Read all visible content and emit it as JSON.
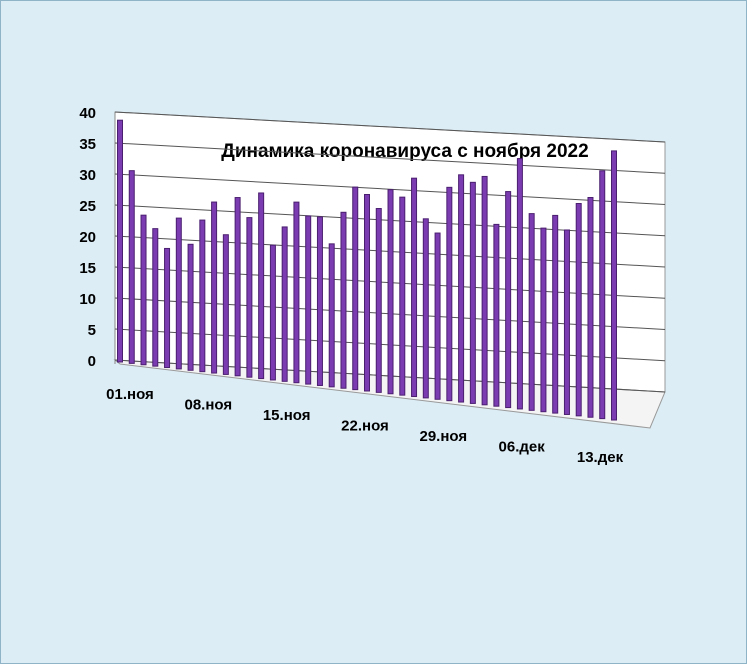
{
  "chart_data": {
    "type": "bar",
    "title": "Динамика  коронавируса с ноября 2022",
    "categories": [
      "01.ноя",
      null,
      null,
      null,
      null,
      null,
      null,
      "08.ноя",
      null,
      null,
      null,
      null,
      null,
      null,
      "15.ноя",
      null,
      null,
      null,
      null,
      null,
      null,
      "22.ноя",
      null,
      null,
      null,
      null,
      null,
      null,
      "29.ноя",
      null,
      null,
      null,
      null,
      null,
      null,
      "06.дек",
      null,
      null,
      null,
      null,
      null,
      null,
      "13.дек"
    ],
    "values": [
      39,
      31,
      24,
      22,
      19,
      24,
      20,
      24,
      27,
      22,
      28,
      25,
      29,
      21,
      24,
      28,
      26,
      26,
      22,
      27,
      31,
      30,
      28,
      31,
      30,
      33,
      27,
      25,
      32,
      34,
      33,
      34,
      27,
      32,
      37,
      29,
      27,
      29,
      27,
      31,
      32,
      36,
      39
    ],
    "color": "#7a3cb0",
    "ylim": [
      0,
      40
    ],
    "yticks": [
      0,
      5,
      10,
      15,
      20,
      25,
      30,
      35,
      40
    ],
    "grid": true
  }
}
